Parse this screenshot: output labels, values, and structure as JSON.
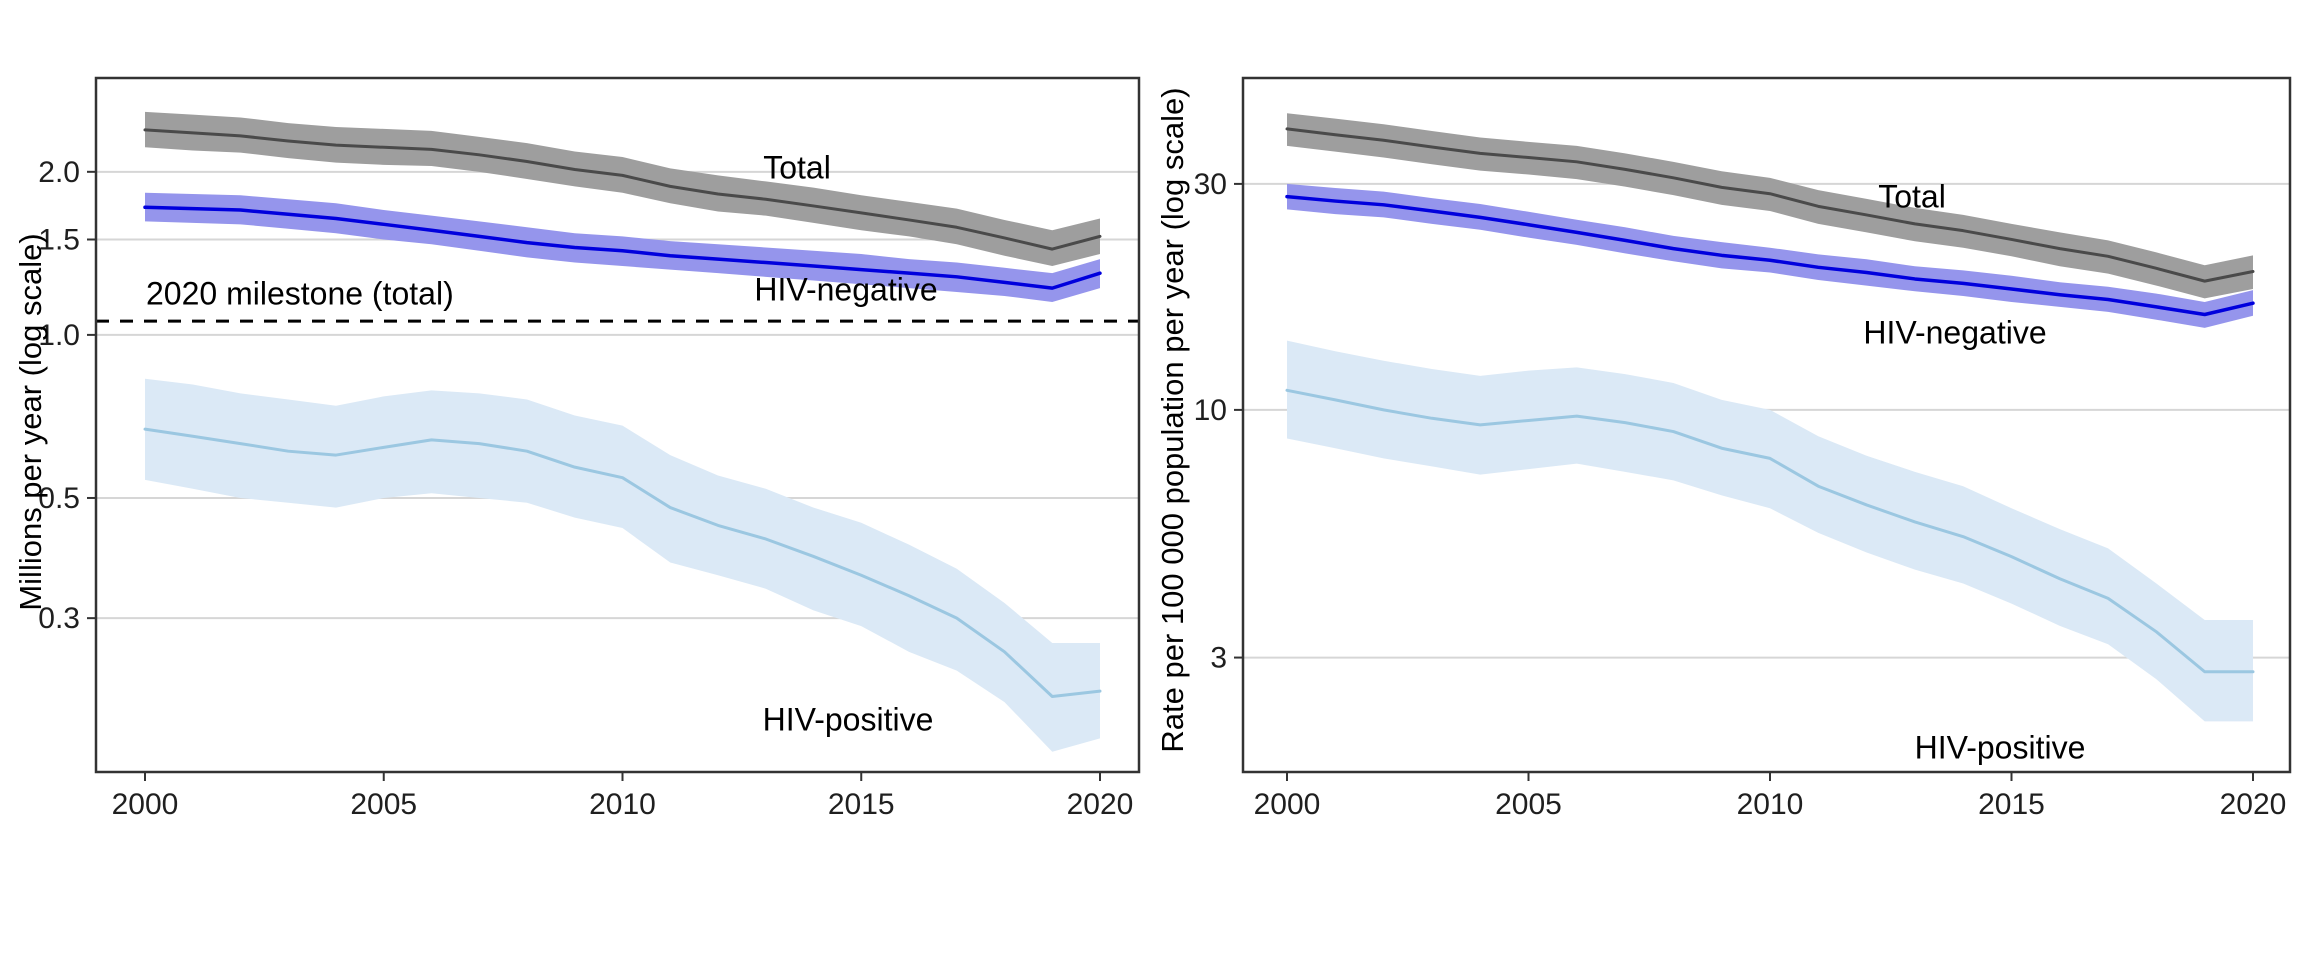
{
  "page": {
    "background": "#ffffff"
  },
  "style": {
    "grid_color": "#d6d6d6",
    "axis_color": "#333333",
    "tick_text_color": "#1f1f1f",
    "annotation_text_color": "#000000"
  },
  "chart_data": [
    {
      "id": "tb-deaths",
      "type": "line",
      "subtype": "lines-with-confidence-bands",
      "log_scale": true,
      "grid": "major-y-only",
      "legend_position": "inline-annotations",
      "ylabel": "Millions per year (log scale)",
      "x": [
        2000,
        2001,
        2002,
        2003,
        2004,
        2005,
        2006,
        2007,
        2008,
        2009,
        2010,
        2011,
        2012,
        2013,
        2014,
        2015,
        2016,
        2017,
        2018,
        2019,
        2020
      ],
      "xticks": [
        2000,
        2005,
        2010,
        2015,
        2020
      ],
      "xtick_labels": [
        "2000",
        "2005",
        "2010",
        "2015",
        "2020"
      ],
      "yticks": [
        2.0,
        1.5,
        1.0,
        0.5,
        0.3
      ],
      "ytick_labels": [
        "2.0",
        "1.5",
        "1.0",
        "0.5",
        "0.3"
      ],
      "ylim": [
        0.156,
        2.98
      ],
      "xlim": [
        1998.3,
        2020.8
      ],
      "reference_line": {
        "label": "2020 milestone (total)",
        "value": 1.06,
        "style": "dashed",
        "color": "#000000"
      },
      "series": [
        {
          "name": "Total",
          "annotation": "Total",
          "color": "#4a4a4a",
          "band_color": "#9e9e9e",
          "values": [
            2.39,
            2.36,
            2.33,
            2.28,
            2.24,
            2.22,
            2.2,
            2.15,
            2.09,
            2.02,
            1.97,
            1.88,
            1.82,
            1.78,
            1.73,
            1.68,
            1.63,
            1.58,
            1.51,
            1.44,
            1.52
          ],
          "band_lo": [
            2.22,
            2.19,
            2.17,
            2.12,
            2.08,
            2.06,
            2.05,
            2.0,
            1.94,
            1.88,
            1.83,
            1.75,
            1.69,
            1.66,
            1.61,
            1.56,
            1.52,
            1.47,
            1.4,
            1.34,
            1.41
          ],
          "band_hi": [
            2.58,
            2.55,
            2.52,
            2.46,
            2.42,
            2.4,
            2.38,
            2.32,
            2.26,
            2.18,
            2.13,
            2.03,
            1.97,
            1.92,
            1.87,
            1.81,
            1.76,
            1.71,
            1.63,
            1.56,
            1.64
          ]
        },
        {
          "name": "HIV-negative",
          "annotation": "HIV-negative",
          "color": "#0000dd",
          "band_color": "#9595ec",
          "values": [
            1.72,
            1.71,
            1.7,
            1.67,
            1.64,
            1.6,
            1.56,
            1.52,
            1.48,
            1.45,
            1.43,
            1.4,
            1.38,
            1.36,
            1.34,
            1.32,
            1.3,
            1.28,
            1.25,
            1.22,
            1.3
          ],
          "band_lo": [
            1.62,
            1.61,
            1.6,
            1.57,
            1.54,
            1.5,
            1.47,
            1.43,
            1.39,
            1.36,
            1.34,
            1.32,
            1.3,
            1.28,
            1.26,
            1.24,
            1.22,
            1.2,
            1.18,
            1.15,
            1.22
          ],
          "band_hi": [
            1.83,
            1.82,
            1.81,
            1.78,
            1.75,
            1.7,
            1.66,
            1.62,
            1.58,
            1.54,
            1.52,
            1.49,
            1.47,
            1.45,
            1.43,
            1.41,
            1.38,
            1.36,
            1.33,
            1.3,
            1.38
          ]
        },
        {
          "name": "HIV-positive",
          "annotation": "HIV-positive",
          "color": "#9bc7e1",
          "band_color": "#dbe9f6",
          "values": [
            0.67,
            0.65,
            0.63,
            0.61,
            0.6,
            0.62,
            0.64,
            0.63,
            0.61,
            0.57,
            0.545,
            0.48,
            0.445,
            0.42,
            0.39,
            0.36,
            0.33,
            0.3,
            0.26,
            0.215,
            0.22
          ],
          "band_lo": [
            0.54,
            0.52,
            0.5,
            0.49,
            0.48,
            0.5,
            0.51,
            0.5,
            0.49,
            0.46,
            0.44,
            0.38,
            0.36,
            0.34,
            0.31,
            0.29,
            0.26,
            0.24,
            0.21,
            0.17,
            0.18
          ],
          "band_hi": [
            0.83,
            0.81,
            0.78,
            0.76,
            0.74,
            0.77,
            0.79,
            0.78,
            0.76,
            0.71,
            0.68,
            0.6,
            0.55,
            0.52,
            0.48,
            0.45,
            0.41,
            0.37,
            0.32,
            0.27,
            0.27
          ]
        }
      ]
    },
    {
      "id": "tb-mortality-rate",
      "type": "line",
      "subtype": "lines-with-confidence-bands",
      "log_scale": true,
      "grid": "major-y-only",
      "legend_position": "inline-annotations",
      "ylabel": "Rate per 100 000 population per year (log scale)",
      "x": [
        2000,
        2001,
        2002,
        2003,
        2004,
        2005,
        2006,
        2007,
        2008,
        2009,
        2010,
        2011,
        2012,
        2013,
        2014,
        2015,
        2016,
        2017,
        2018,
        2019,
        2020
      ],
      "xticks": [
        2000,
        2005,
        2010,
        2015,
        2020
      ],
      "xtick_labels": [
        "2000",
        "2005",
        "2010",
        "2015",
        "2020"
      ],
      "yticks": [
        30,
        10,
        3
      ],
      "ytick_labels": [
        "30",
        "10",
        "3"
      ],
      "ylim": [
        1.72,
        50.2
      ],
      "xlim": [
        1998.8,
        2020.8
      ],
      "series": [
        {
          "name": "Total",
          "annotation": "Total",
          "color": "#4a4a4a",
          "band_color": "#9e9e9e",
          "values": [
            39.2,
            38.1,
            37.1,
            35.9,
            34.8,
            34.1,
            33.4,
            32.2,
            30.9,
            29.5,
            28.6,
            26.9,
            25.8,
            24.7,
            23.9,
            22.9,
            21.9,
            21.1,
            19.9,
            18.7,
            19.6
          ],
          "band_lo": [
            36.1,
            35.1,
            34.1,
            33.0,
            32.0,
            31.4,
            30.7,
            29.6,
            28.4,
            27.1,
            26.3,
            24.7,
            23.7,
            22.7,
            22.0,
            21.1,
            20.1,
            19.4,
            18.3,
            17.2,
            18.0
          ],
          "band_hi": [
            42.3,
            41.2,
            40.1,
            38.8,
            37.6,
            36.8,
            36.1,
            34.8,
            33.4,
            31.9,
            30.9,
            29.1,
            27.9,
            26.7,
            25.8,
            24.7,
            23.7,
            22.8,
            21.5,
            20.2,
            21.2
          ]
        },
        {
          "name": "HIV-negative",
          "annotation": "HIV-negative",
          "color": "#0000dd",
          "band_color": "#9595ec",
          "values": [
            28.2,
            27.6,
            27.1,
            26.3,
            25.5,
            24.6,
            23.7,
            22.8,
            21.9,
            21.2,
            20.7,
            20.0,
            19.5,
            18.9,
            18.5,
            18.0,
            17.5,
            17.1,
            16.5,
            15.9,
            16.8
          ],
          "band_lo": [
            26.5,
            25.9,
            25.5,
            24.7,
            24.0,
            23.1,
            22.3,
            21.4,
            20.6,
            19.9,
            19.5,
            18.8,
            18.3,
            17.8,
            17.4,
            16.9,
            16.5,
            16.1,
            15.5,
            14.9,
            15.8
          ],
          "band_hi": [
            30.0,
            29.4,
            28.9,
            28.0,
            27.2,
            26.2,
            25.2,
            24.3,
            23.3,
            22.6,
            22.0,
            21.3,
            20.8,
            20.1,
            19.7,
            19.2,
            18.6,
            18.2,
            17.6,
            16.9,
            17.9
          ]
        },
        {
          "name": "HIV-positive",
          "annotation": "HIV-positive",
          "color": "#9bc7e1",
          "band_color": "#dbe9f6",
          "values": [
            11.0,
            10.5,
            10.0,
            9.6,
            9.3,
            9.5,
            9.7,
            9.4,
            9.0,
            8.3,
            7.9,
            6.9,
            6.3,
            5.8,
            5.4,
            4.9,
            4.4,
            4.0,
            3.4,
            2.8,
            2.8
          ],
          "band_lo": [
            8.7,
            8.3,
            7.9,
            7.6,
            7.3,
            7.5,
            7.7,
            7.4,
            7.1,
            6.6,
            6.2,
            5.5,
            5.0,
            4.6,
            4.3,
            3.9,
            3.5,
            3.2,
            2.7,
            2.2,
            2.2
          ],
          "band_hi": [
            14.0,
            13.3,
            12.7,
            12.2,
            11.8,
            12.1,
            12.3,
            11.9,
            11.4,
            10.5,
            10.0,
            8.8,
            8.0,
            7.4,
            6.9,
            6.2,
            5.6,
            5.1,
            4.3,
            3.6,
            3.6
          ]
        }
      ]
    }
  ]
}
